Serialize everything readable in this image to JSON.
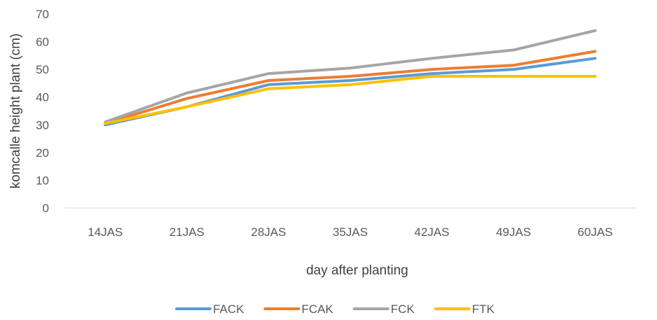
{
  "chart_data": {
    "type": "line",
    "title": "",
    "xlabel": "day after planting",
    "ylabel": "komcalle height plant (cm)",
    "categories": [
      "14JAS",
      "21JAS",
      "28JAS",
      "35JAS",
      "42JAS",
      "49JAS",
      "60JAS"
    ],
    "ylim": [
      0,
      70
    ],
    "yticks": [
      0,
      10,
      20,
      30,
      40,
      50,
      60,
      70
    ],
    "grid": false,
    "legend_position": "bottom",
    "series": [
      {
        "name": "FACK",
        "color": "#5B9BD5",
        "values": [
          30,
          36.5,
          44.5,
          46,
          48.5,
          50,
          54
        ]
      },
      {
        "name": "FCAK",
        "color": "#ED7D31",
        "values": [
          30.5,
          39.5,
          46,
          47.5,
          50,
          51.5,
          56.5
        ]
      },
      {
        "name": "FCK",
        "color": "#A5A5A5",
        "values": [
          31,
          41.5,
          48.5,
          50.5,
          54,
          57,
          64
        ]
      },
      {
        "name": "FTK",
        "color": "#FFC000",
        "values": [
          30.5,
          36.5,
          43,
          44.5,
          47.5,
          47.5,
          47.5
        ]
      }
    ]
  }
}
